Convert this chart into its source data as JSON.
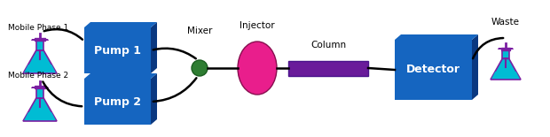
{
  "bg_color": "#ffffff",
  "pump_color": "#1565c0",
  "pump_dark_color": "#0d47a1",
  "pump_side_color": "#0a3880",
  "detector_color": "#1565c0",
  "mixer_color": "#2e7d32",
  "injector_color": "#e91e8c",
  "column_color": "#6a1b9a",
  "flask_body_color": "#00bcd4",
  "flask_neck_color": "#7b1fa2",
  "flask_stopper_color": "#7b1fa2",
  "line_color": "#000000",
  "pump1_label": "Pump 1",
  "pump2_label": "Pump 2",
  "mixer_label": "Mixer",
  "injector_label": "Injector",
  "column_label": "Column",
  "detector_label": "Detector",
  "waste_label": "Waste",
  "mp1_label": "Mobile Phase 1",
  "mp2_label": "Mobile Phase 2"
}
